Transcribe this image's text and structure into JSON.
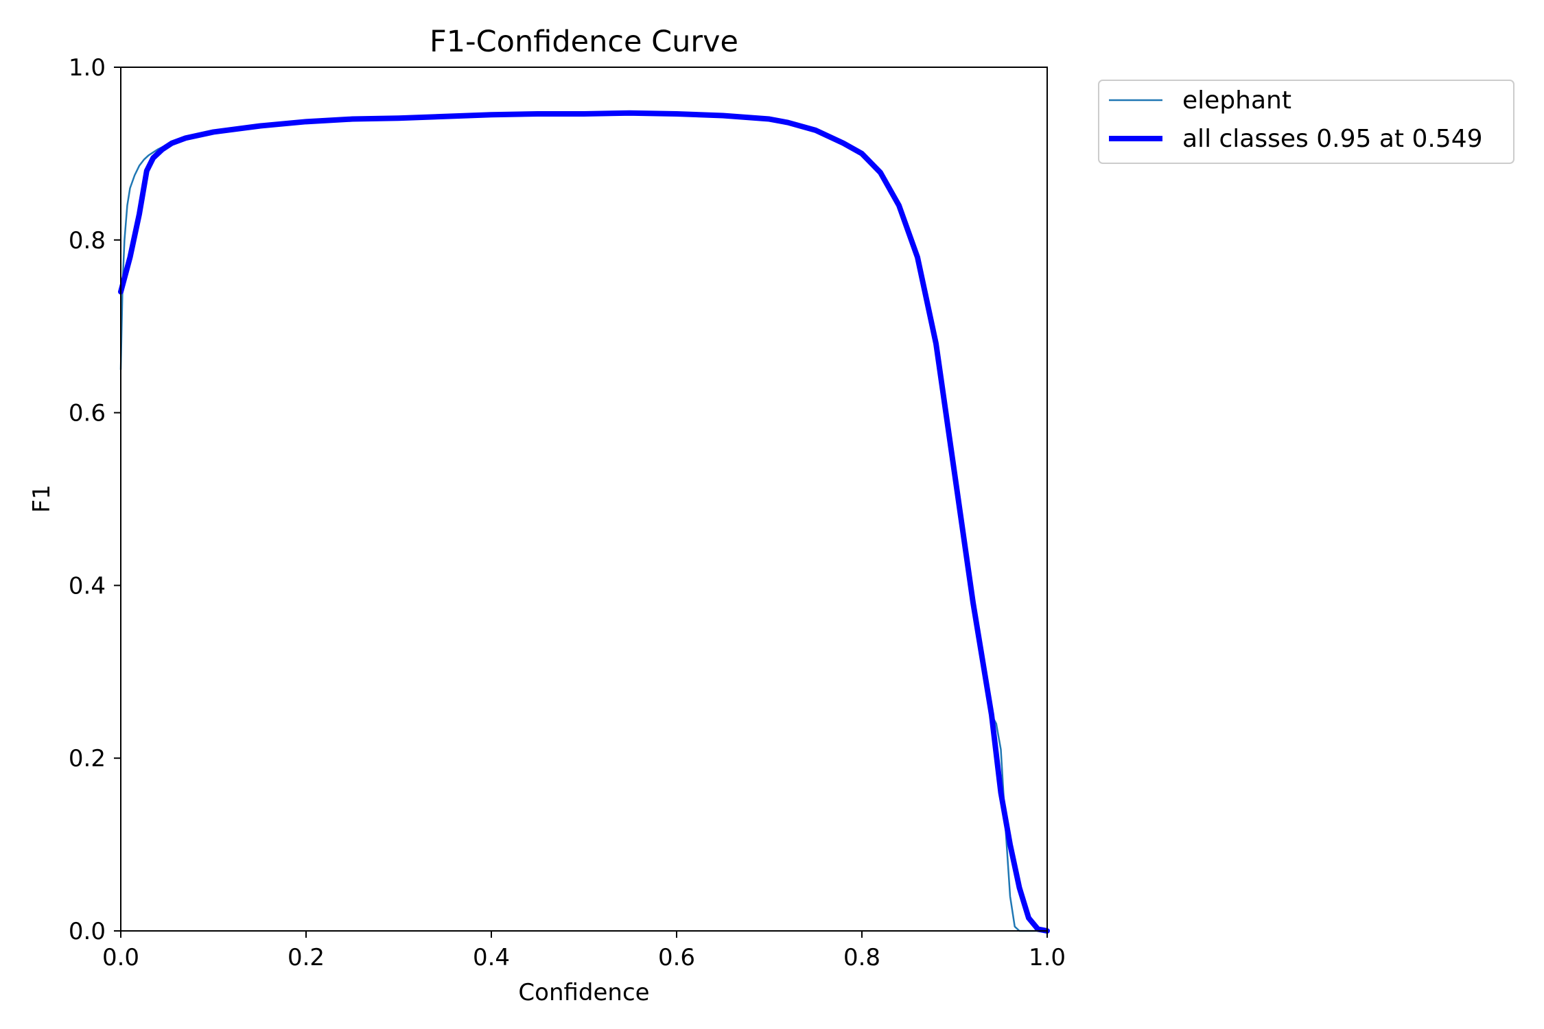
{
  "chart_data": {
    "type": "line",
    "title": "F1-Confidence Curve",
    "xlabel": "Confidence",
    "ylabel": "F1",
    "xlim": [
      0,
      1
    ],
    "ylim": [
      0,
      1
    ],
    "xticks": [
      0.0,
      0.2,
      0.4,
      0.6,
      0.8,
      1.0
    ],
    "yticks": [
      0.0,
      0.2,
      0.4,
      0.6,
      0.8,
      1.0
    ],
    "xtick_labels": [
      "0.0",
      "0.2",
      "0.4",
      "0.6",
      "0.8",
      "1.0"
    ],
    "ytick_labels": [
      "0.0",
      "0.2",
      "0.4",
      "0.6",
      "0.8",
      "1.0"
    ],
    "grid": false,
    "legend_position": "outside-top-right",
    "series": [
      {
        "name": "elephant",
        "color": "#1f77b4",
        "line_width": "thin",
        "x": [
          0.0,
          0.002,
          0.004,
          0.007,
          0.01,
          0.015,
          0.02,
          0.025,
          0.03,
          0.04,
          0.05,
          0.07,
          0.1,
          0.15,
          0.2,
          0.25,
          0.3,
          0.35,
          0.4,
          0.45,
          0.5,
          0.55,
          0.6,
          0.65,
          0.7,
          0.72,
          0.75,
          0.78,
          0.8,
          0.82,
          0.84,
          0.86,
          0.88,
          0.9,
          0.92,
          0.94,
          0.945,
          0.95,
          0.955,
          0.96,
          0.965,
          0.97,
          0.975,
          0.98,
          0.99,
          1.0
        ],
        "y": [
          0.65,
          0.75,
          0.8,
          0.84,
          0.86,
          0.875,
          0.886,
          0.893,
          0.898,
          0.905,
          0.91,
          0.918,
          0.925,
          0.932,
          0.937,
          0.94,
          0.941,
          0.943,
          0.945,
          0.946,
          0.946,
          0.947,
          0.946,
          0.944,
          0.94,
          0.936,
          0.927,
          0.912,
          0.9,
          0.878,
          0.84,
          0.78,
          0.68,
          0.53,
          0.38,
          0.25,
          0.24,
          0.21,
          0.12,
          0.04,
          0.005,
          0.0,
          0.0,
          0.0,
          0.0,
          0.0
        ]
      },
      {
        "name": "all classes 0.95 at 0.549",
        "color": "#0000ff",
        "line_width": "thick",
        "x": [
          0.0,
          0.01,
          0.02,
          0.028,
          0.035,
          0.045,
          0.055,
          0.07,
          0.1,
          0.15,
          0.2,
          0.25,
          0.3,
          0.35,
          0.4,
          0.45,
          0.5,
          0.549,
          0.6,
          0.65,
          0.7,
          0.72,
          0.75,
          0.78,
          0.8,
          0.82,
          0.84,
          0.86,
          0.88,
          0.9,
          0.92,
          0.94,
          0.95,
          0.96,
          0.97,
          0.98,
          0.99,
          1.0
        ],
        "y": [
          0.74,
          0.78,
          0.83,
          0.88,
          0.895,
          0.905,
          0.912,
          0.918,
          0.925,
          0.932,
          0.937,
          0.94,
          0.941,
          0.943,
          0.945,
          0.946,
          0.946,
          0.947,
          0.946,
          0.944,
          0.94,
          0.936,
          0.927,
          0.912,
          0.9,
          0.878,
          0.84,
          0.78,
          0.68,
          0.53,
          0.38,
          0.25,
          0.16,
          0.1,
          0.05,
          0.015,
          0.002,
          0.0
        ]
      }
    ]
  }
}
